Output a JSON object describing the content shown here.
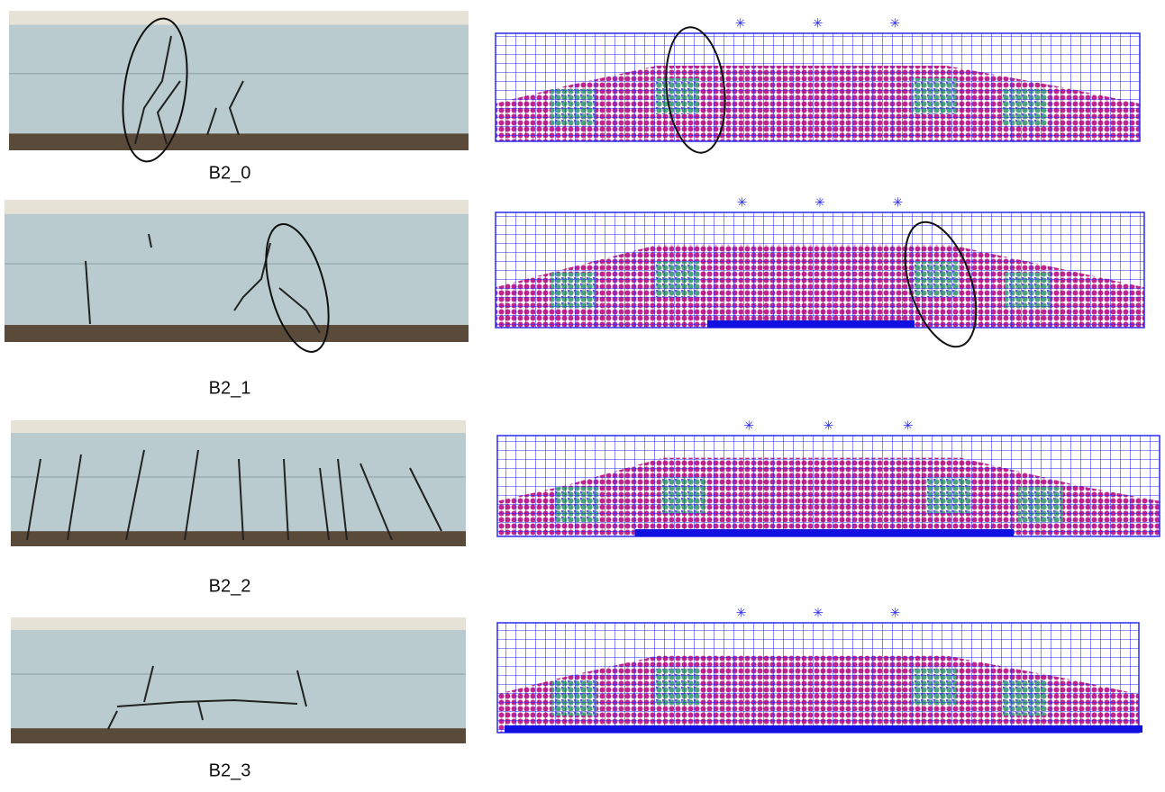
{
  "panels": [
    {
      "label": "B2_0"
    },
    {
      "label": "B2_1"
    },
    {
      "label": "B2_2"
    },
    {
      "label": "B2_3"
    }
  ]
}
